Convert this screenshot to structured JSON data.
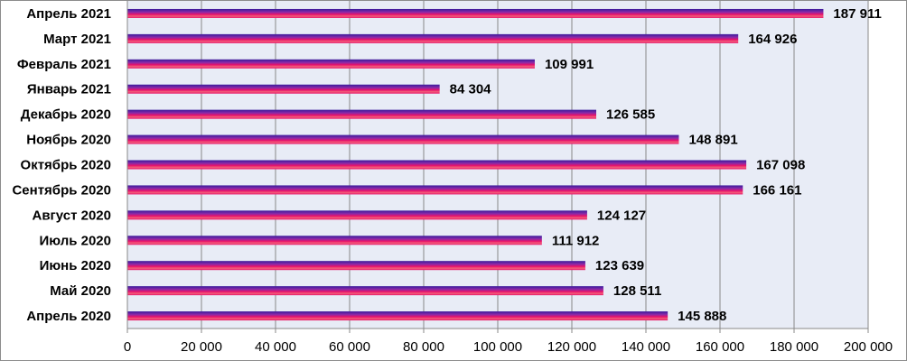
{
  "chart_data": {
    "type": "bar",
    "orientation": "horizontal",
    "categories": [
      "Апрель 2021",
      "Март 2021",
      "Февраль 2021",
      "Январь  2021",
      "Декабрь  2020",
      "Ноябрь  2020",
      "Октябрь  2020",
      "Сентябрь 2020",
      "Август 2020",
      "Июль 2020",
      "Июнь 2020",
      "Май 2020",
      "Апрель 2020"
    ],
    "values": [
      187911,
      164926,
      109991,
      84304,
      126585,
      148891,
      167098,
      166161,
      124127,
      111912,
      123639,
      128511,
      145888
    ],
    "value_labels": [
      "187 911",
      "164 926",
      "109 991",
      "84 304",
      "126 585",
      "148 891",
      "167 098",
      "166 161",
      "124 127",
      "111 912",
      "123 639",
      "128 511",
      "145 888"
    ],
    "xlim": [
      0,
      200000
    ],
    "x_ticks": [
      0,
      20000,
      40000,
      60000,
      80000,
      100000,
      120000,
      140000,
      160000,
      180000,
      200000
    ],
    "x_tick_labels": [
      "0",
      "20 000",
      "40 000",
      "60 000",
      "80 000",
      "100 000",
      "120 000",
      "140 000",
      "160 000",
      "180 000",
      "200 000"
    ],
    "grid": "vertical",
    "legend": "none",
    "colors": {
      "bar_top": "#3a1a9c",
      "bar_mid": "#8a2aa8",
      "bar_bottom": "#e8106a",
      "bar_highlight": "#f2607a",
      "plot_background": "#e8ecf6",
      "gridline": "#888888"
    }
  }
}
